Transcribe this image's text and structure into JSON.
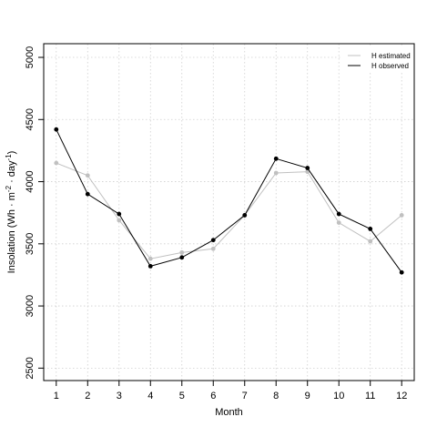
{
  "chart_data": {
    "type": "line",
    "title": "",
    "xlabel": "Month",
    "ylabel": "Insolation (Wh·m⁻²·day⁻¹)",
    "ylabel_parts": {
      "pre": "Insolation (Wh",
      "mid1": "m",
      "exp1": "-2",
      "mid2": "day",
      "exp2": "-1",
      "post": ")"
    },
    "x": [
      1,
      2,
      3,
      4,
      5,
      6,
      7,
      8,
      9,
      10,
      11,
      12
    ],
    "x_ticks": [
      "1",
      "2",
      "3",
      "4",
      "5",
      "6",
      "7",
      "8",
      "9",
      "10",
      "11",
      "12"
    ],
    "y_ticks": [
      "2500",
      "3000",
      "3500",
      "4000",
      "4500",
      "5000"
    ],
    "xlim": [
      0.6,
      12.4
    ],
    "ylim": [
      2400,
      5110
    ],
    "grid": true,
    "legend_position": "top-right",
    "series": [
      {
        "name": "H estimated",
        "color": "#c0c0c0",
        "values": [
          4150,
          4050,
          3690,
          3380,
          3430,
          3460,
          3730,
          4070,
          4080,
          3670,
          3520,
          3730
        ]
      },
      {
        "name": "H observed",
        "color": "#000000",
        "values": [
          4420,
          3900,
          3740,
          3320,
          3390,
          3530,
          3730,
          4185,
          4110,
          3740,
          3620,
          3270
        ]
      }
    ]
  }
}
